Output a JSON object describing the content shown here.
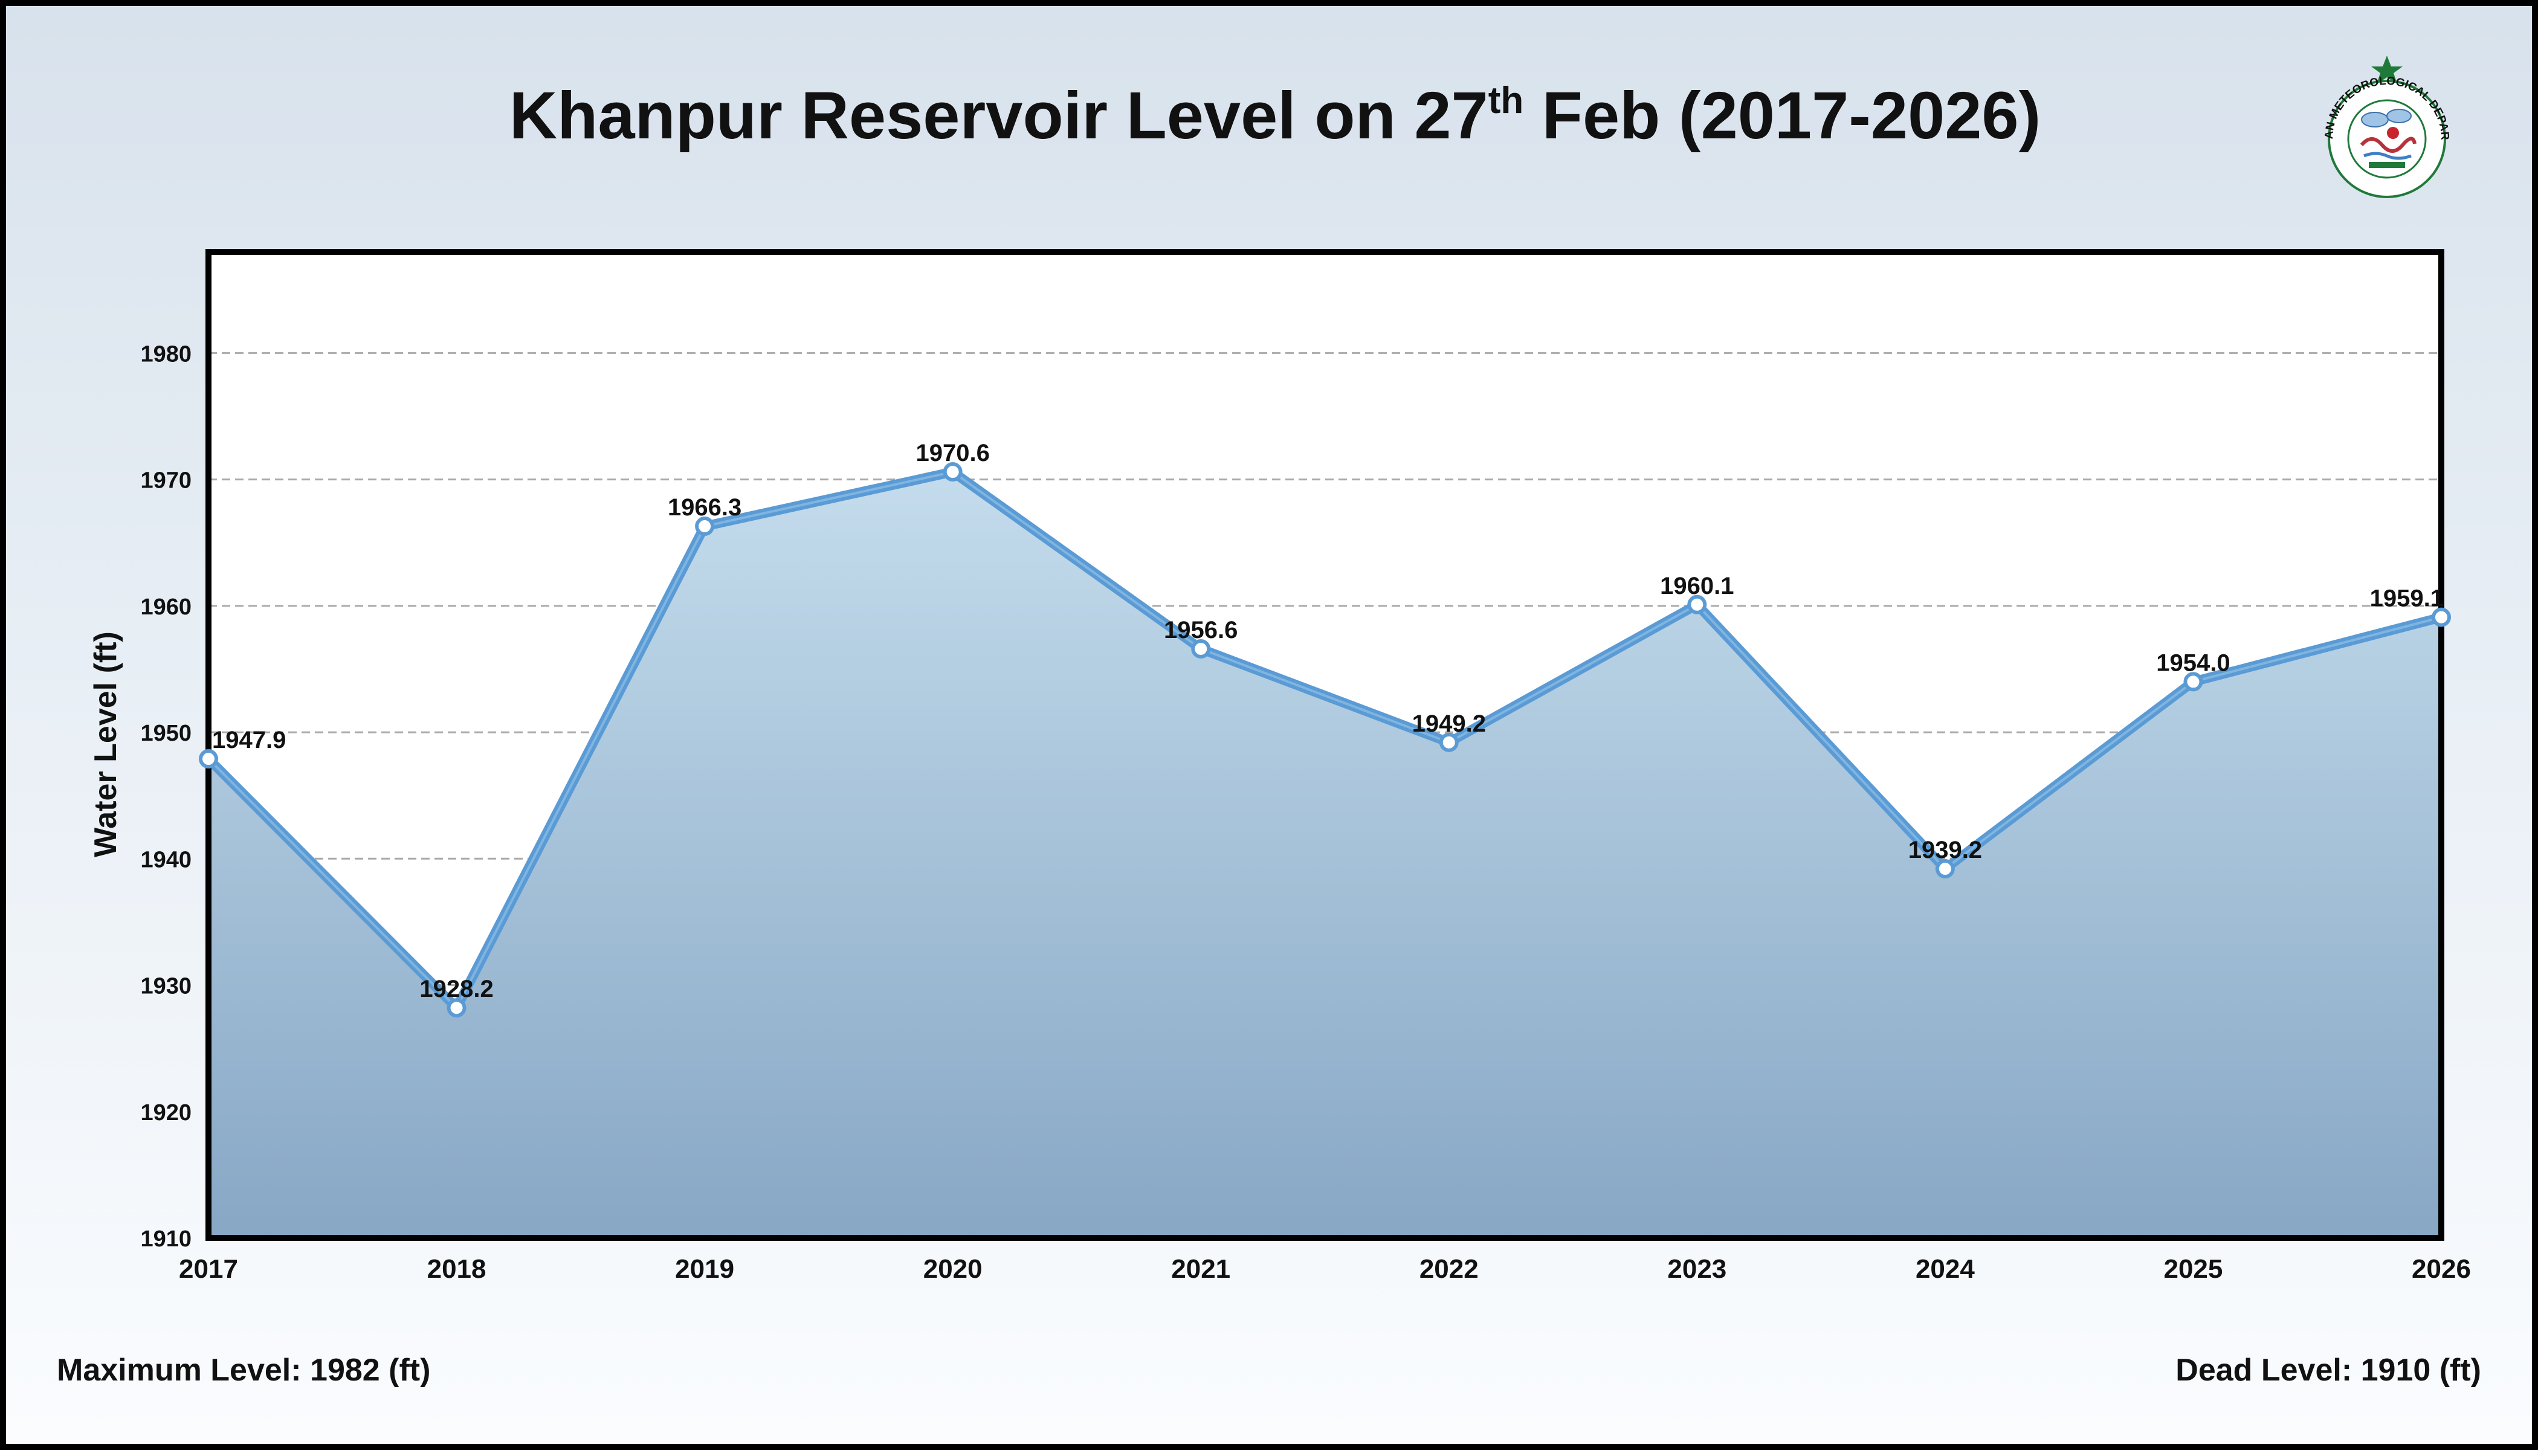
{
  "title": {
    "prefix": "Khanpur Reservoir Level on 27",
    "superscript": "th",
    "suffix": " Feb (2017-2026)"
  },
  "logo": {
    "organization": "PAKISTAN METEOROLOGICAL DEPARTMENT",
    "icon": "pmd-seal-logo"
  },
  "footer": {
    "maximum_level": "Maximum Level: 1982 (ft)",
    "dead_level": "Dead Level: 1910 (ft)"
  },
  "colors": {
    "line": "#5b9bd5",
    "area_top": "#c4dcec",
    "area_bottom": "#87a7c5",
    "grid": "#aaaaaa"
  },
  "chart_data": {
    "type": "area",
    "x": [
      2017,
      2018,
      2019,
      2020,
      2021,
      2022,
      2023,
      2024,
      2025,
      2026
    ],
    "values": [
      1947.9,
      1928.2,
      1966.3,
      1970.6,
      1956.6,
      1949.2,
      1960.1,
      1939.2,
      1954.0,
      1959.1
    ],
    "data_labels": [
      "1947.9",
      "1928.2",
      "1966.3",
      "1970.6",
      "1956.6",
      "1949.2",
      "1960.1",
      "1939.2",
      "1954.0",
      "1959.1"
    ],
    "ylabel": "Water Level (ft)",
    "xlabel": "",
    "ylim": [
      1910,
      1988
    ],
    "xlim": [
      2017,
      2026
    ],
    "yticks": [
      1910,
      1920,
      1930,
      1940,
      1950,
      1960,
      1970,
      1980
    ],
    "grid": true,
    "grid_style": "dashed-horizontal",
    "legend": false
  }
}
